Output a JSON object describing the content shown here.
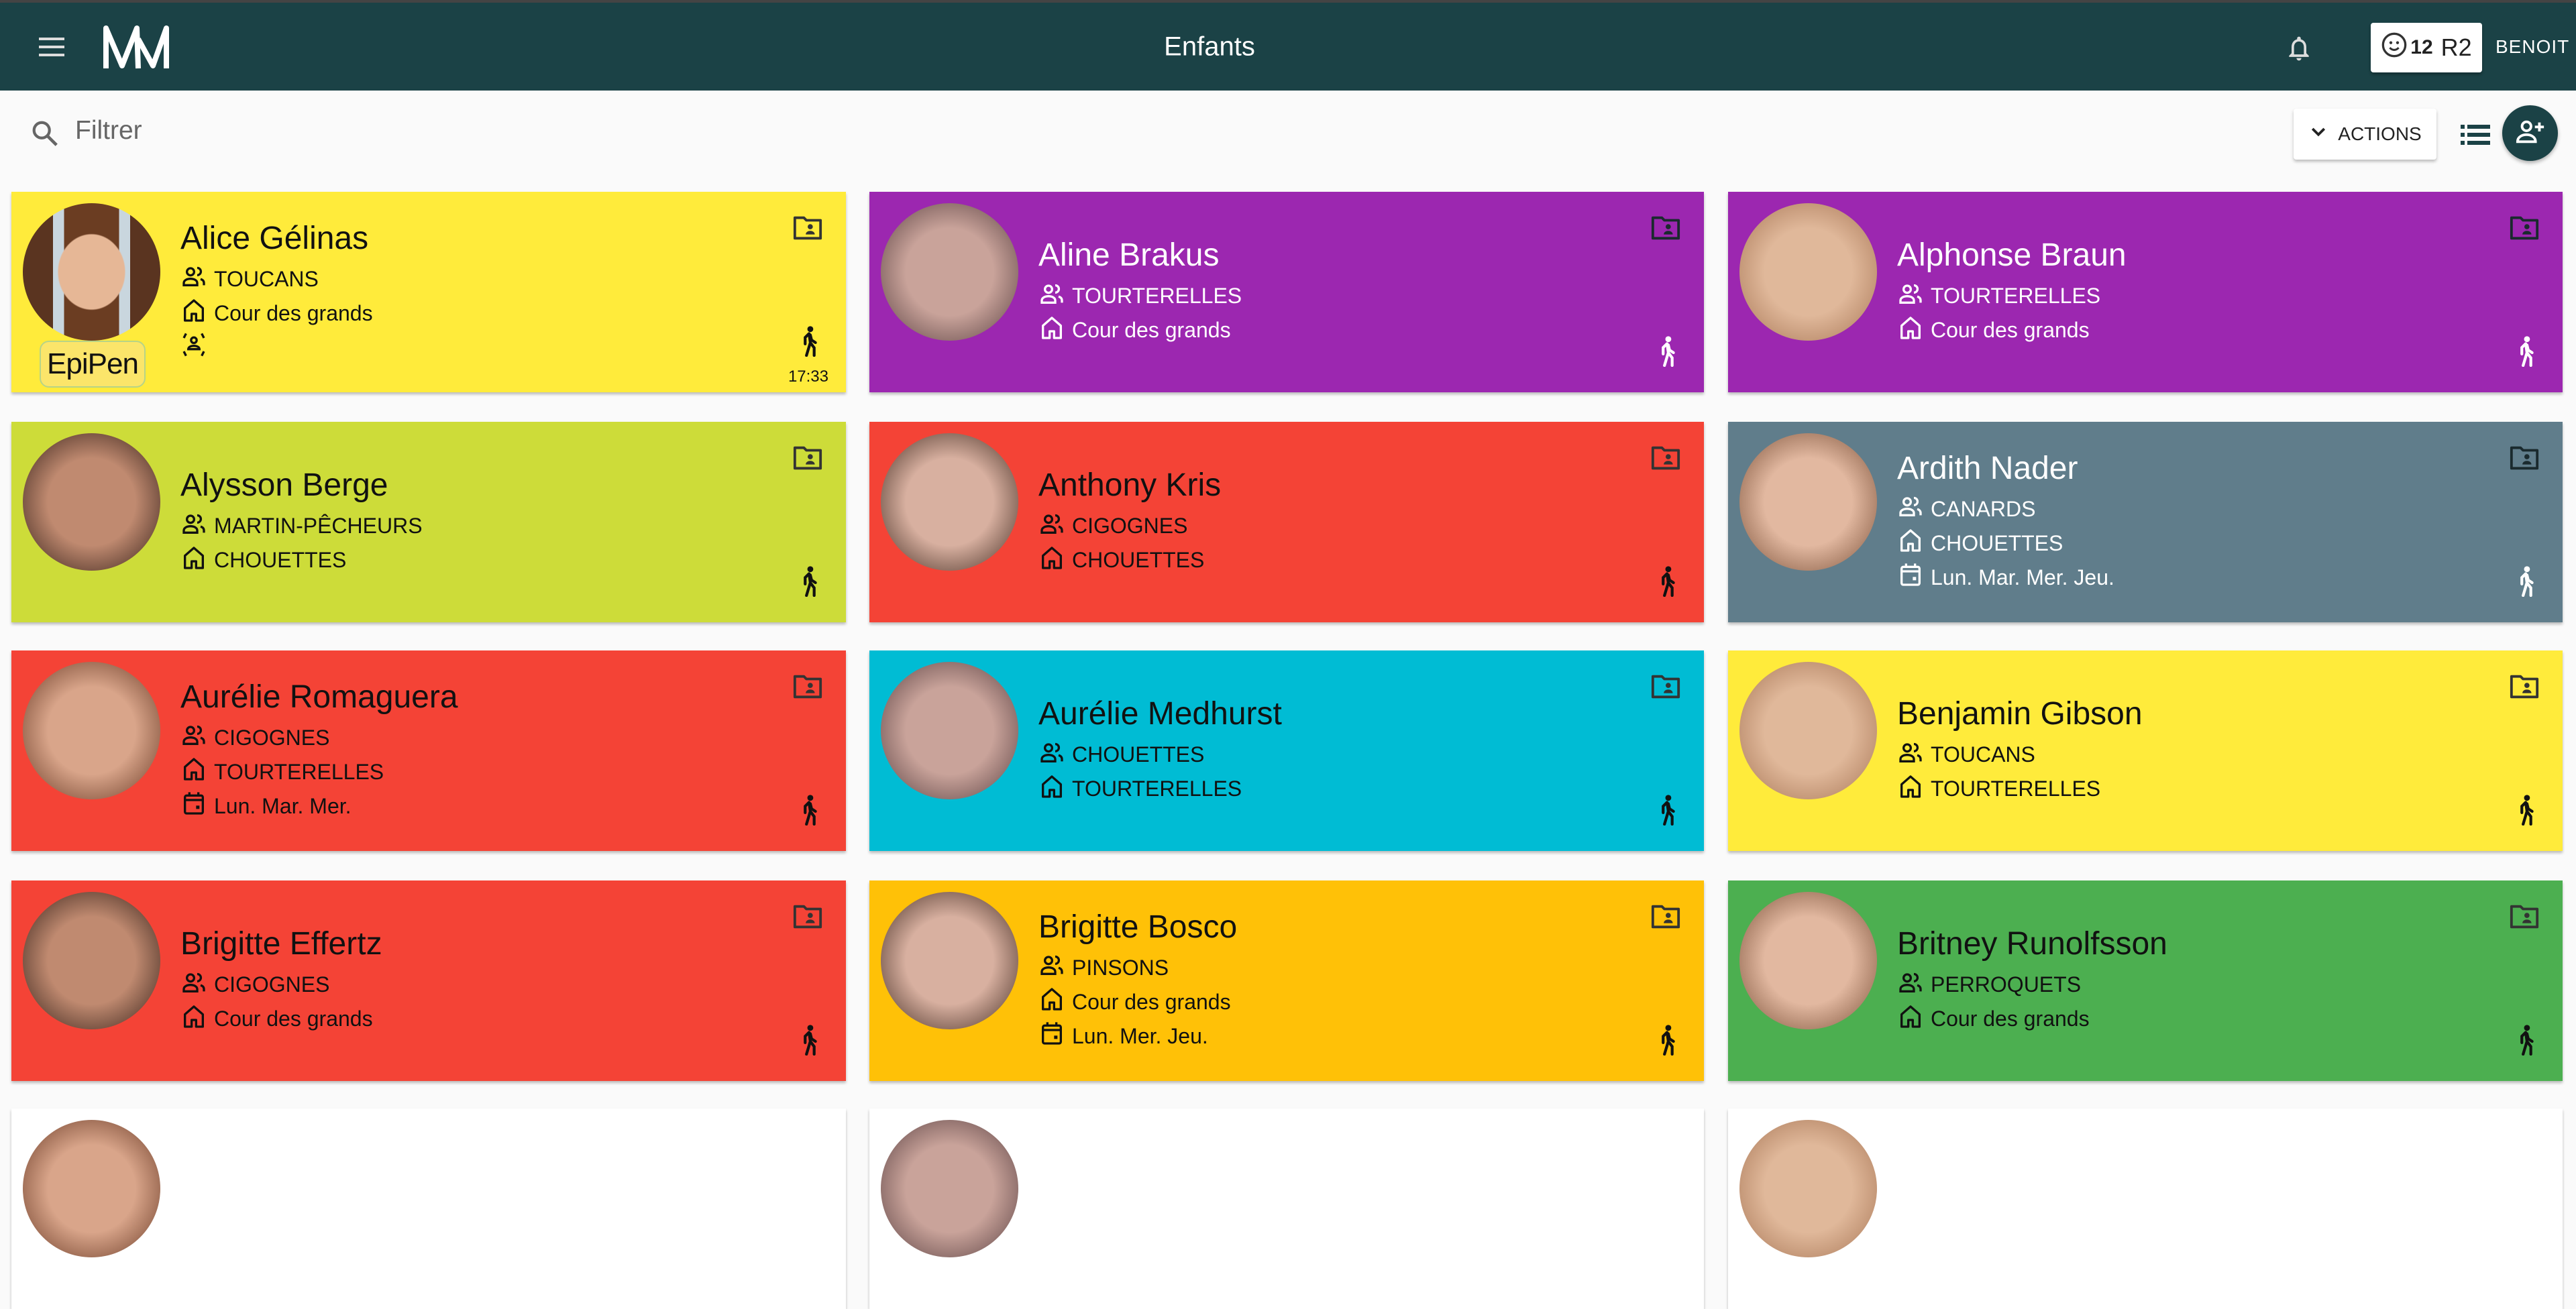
{
  "header": {
    "title": "Enfants",
    "badge_count": "12",
    "badge_code": "R2",
    "user": "BENOIT",
    "brand_color": "#1b4246"
  },
  "toolbar": {
    "filter_placeholder": "Filtrer",
    "actions_label": "ACTIONS"
  },
  "children": [
    {
      "name": "Alice Gélinas",
      "group": "TOUCANS",
      "place": "Cour des grands",
      "days": null,
      "time": "17:33",
      "epipen": "EpiPen",
      "color": "#ffeb3b",
      "text": "#111",
      "photo": "real"
    },
    {
      "name": "Aline Brakus",
      "group": "TOURTERELLES",
      "place": "Cour des grands",
      "days": null,
      "color": "#9c27b0",
      "text": "#fff"
    },
    {
      "name": "Alphonse Braun",
      "group": "TOURTERELLES",
      "place": "Cour des grands",
      "days": null,
      "color": "#9c27b0",
      "text": "#fff"
    },
    {
      "name": "Alysson Berge",
      "group": "MARTIN-PÊCHEURS",
      "place": "CHOUETTES",
      "days": null,
      "color": "#cddc39",
      "text": "#111"
    },
    {
      "name": "Anthony Kris",
      "group": "CIGOGNES",
      "place": "CHOUETTES",
      "days": null,
      "color": "#f44336",
      "text": "#111"
    },
    {
      "name": "Ardith Nader",
      "group": "CANARDS",
      "place": "CHOUETTES",
      "days": "Lun. Mar. Mer. Jeu.",
      "color": "#607d8b",
      "text": "#fff"
    },
    {
      "name": "Aurélie Romaguera",
      "group": "CIGOGNES",
      "place": "TOURTERELLES",
      "days": "Lun. Mar. Mer.",
      "color": "#f44336",
      "text": "#111"
    },
    {
      "name": "Aurélie Medhurst",
      "group": "CHOUETTES",
      "place": "TOURTERELLES",
      "days": null,
      "color": "#00bcd4",
      "text": "#111"
    },
    {
      "name": "Benjamin Gibson",
      "group": "TOUCANS",
      "place": "TOURTERELLES",
      "days": null,
      "color": "#ffeb3b",
      "text": "#111"
    },
    {
      "name": "Brigitte Effertz",
      "group": "CIGOGNES",
      "place": "Cour des grands",
      "days": null,
      "color": "#f44336",
      "text": "#111"
    },
    {
      "name": "Brigitte Bosco",
      "group": "PINSONS",
      "place": "Cour des grands",
      "days": "Lun. Mer. Jeu.",
      "color": "#ffc107",
      "text": "#111"
    },
    {
      "name": "Britney Runolfsson",
      "group": "PERROQUETS",
      "place": "Cour des grands",
      "days": null,
      "color": "#4caf50",
      "text": "#111"
    }
  ]
}
